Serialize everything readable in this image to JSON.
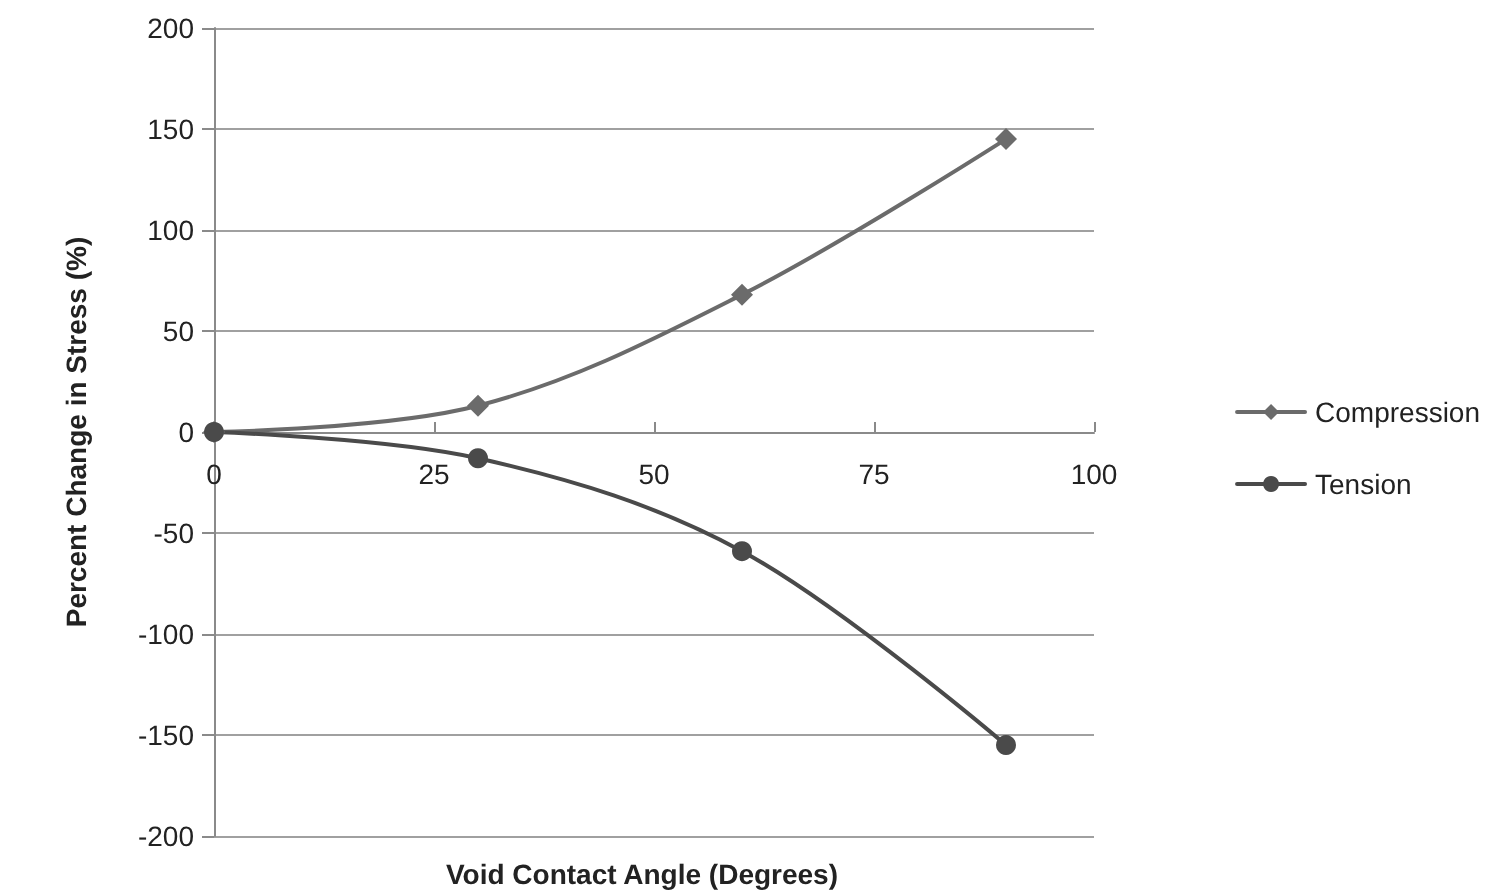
{
  "chart_data": {
    "type": "line",
    "xlabel": "Void Contact Angle (Degrees)",
    "ylabel": "Percent Change in Stress (%)",
    "x": [
      0,
      30,
      60,
      90
    ],
    "series": [
      {
        "name": "Compression",
        "color": "#6b6b6b",
        "marker": "diamond",
        "values": [
          0,
          13,
          68,
          145
        ]
      },
      {
        "name": "Tension",
        "color": "#4a4a4a",
        "marker": "circle",
        "values": [
          0,
          -13,
          -59,
          -155
        ]
      }
    ],
    "xlim": [
      0,
      100
    ],
    "xticks": [
      0,
      25,
      50,
      75,
      100
    ],
    "ylim": [
      -200,
      200
    ],
    "yticks": [
      -200,
      -150,
      -100,
      -50,
      0,
      50,
      100,
      150,
      200
    ],
    "grid": "y",
    "legend": "right"
  }
}
